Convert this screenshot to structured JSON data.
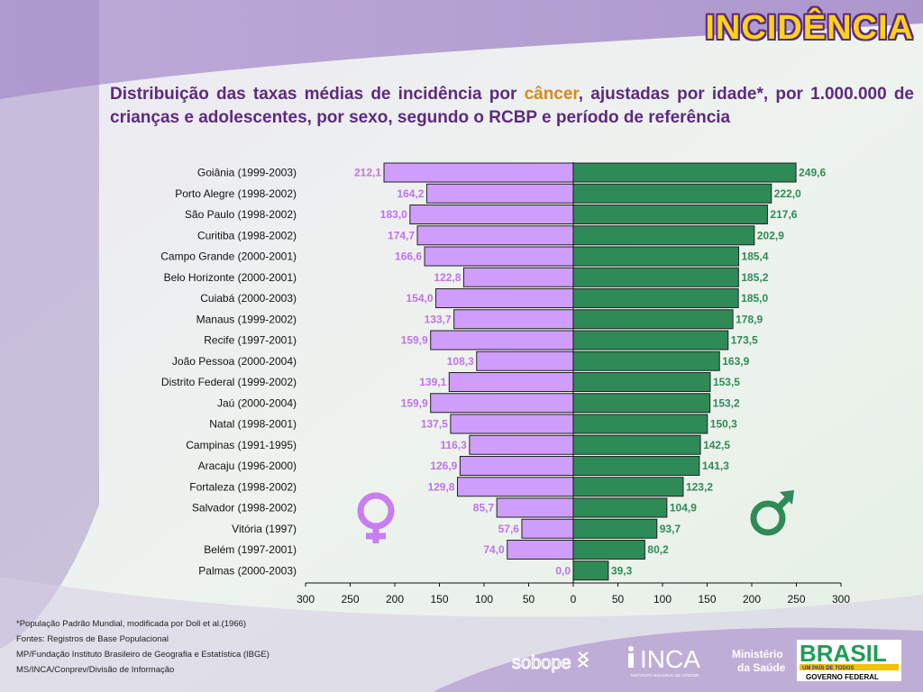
{
  "header": {
    "title": "INCIDÊNCIA",
    "subtitle_part1": "Distribuição das taxas médias de incidência por ",
    "subtitle_highlight": "câncer",
    "subtitle_part2": ", ajustadas por idade*, por 1.000.000 de crianças e adolescentes, por sexo, segundo o RCBP e período de referência"
  },
  "colors": {
    "female_bar": "#cf9dfc",
    "female_label": "#c071f0",
    "male_bar": "#2e8b57",
    "male_label": "#2e8b57",
    "title_fill": "#ffd21a",
    "subtitle_text": "#5c2b80",
    "highlight": "#d98a1c"
  },
  "chart_data": {
    "type": "bar",
    "orientation": "horizontal-population-pyramid",
    "categories": [
      "Goiânia (1999-2003)",
      "Porto Alegre (1998-2002)",
      "São Paulo (1998-2002)",
      "Curitiba (1998-2002)",
      "Campo Grande (2000-2001)",
      "Belo Horizonte (2000-2001)",
      "Cuiabá (2000-2003)",
      "Manaus (1999-2002)",
      "Recife (1997-2001)",
      "João Pessoa (2000-2004)",
      "Distrito Federal (1999-2002)",
      "Jaú (2000-2004)",
      "Natal (1998-2001)",
      "Campinas (1991-1995)",
      "Aracaju (1996-2000)",
      "Fortaleza (1998-2002)",
      "Salvador (1998-2002)",
      "Vitória (1997)",
      "Belém (1997-2001)",
      "Palmas (2000-2003)"
    ],
    "series": [
      {
        "name": "♀",
        "values": [
          212.1,
          164.2,
          183.0,
          174.7,
          166.6,
          122.8,
          154.0,
          133.7,
          159.9,
          108.3,
          139.1,
          159.9,
          137.5,
          116.3,
          126.9,
          129.8,
          85.7,
          57.6,
          74.0,
          0.0
        ],
        "labels": [
          "212,1",
          "164,2",
          "183,0",
          "174,7",
          "166,6",
          "122,8",
          "154,0",
          "133,7",
          "159,9",
          "108,3",
          "139,1",
          "159,9",
          "137,5",
          "116,3",
          "126,9",
          "129,8",
          "85,7",
          "57,6",
          "74,0",
          "0,0"
        ]
      },
      {
        "name": "♂",
        "values": [
          249.6,
          222.0,
          217.6,
          202.9,
          185.4,
          185.2,
          185.0,
          178.9,
          173.5,
          163.9,
          153.5,
          153.2,
          150.3,
          142.5,
          141.3,
          123.2,
          104.9,
          93.7,
          80.2,
          39.3
        ],
        "labels": [
          "249,6",
          "222,0",
          "217,6",
          "202,9",
          "185,4",
          "185,2",
          "185,0",
          "178,9",
          "173,5",
          "163,9",
          "153,5",
          "153,2",
          "150,3",
          "142,5",
          "141,3",
          "123,2",
          "104,9",
          "93,7",
          "80,2",
          "39,3"
        ]
      }
    ],
    "xlim": [
      -300,
      300
    ],
    "x_ticks": [
      "300",
      "250",
      "200",
      "150",
      "100",
      "50",
      "0",
      "50",
      "100",
      "150",
      "200",
      "250",
      "300"
    ],
    "grid": false,
    "legend": "symbols beside bars"
  },
  "footer": {
    "lines": [
      "*População Padrão Mundial, modificada por Doll et al.(1966)",
      "Fontes: Registros de Base Populacional",
      "MP/Fundação Instituto Brasileiro de Geografia e Estatística (IBGE)",
      "MS/INCA/Conprev/Divisão de Informação"
    ]
  },
  "logos": {
    "sobope": "sobope",
    "inca": "INCA",
    "inca_sub": "INSTITUTO NACIONAL DE CÂNCER",
    "ministerio_line1": "Ministério",
    "ministerio_line2": "da Saúde",
    "brasil": "BRASIL",
    "brasil_tagline": "UM PAÍS DE TODOS",
    "governo": "GOVERNO FEDERAL"
  }
}
